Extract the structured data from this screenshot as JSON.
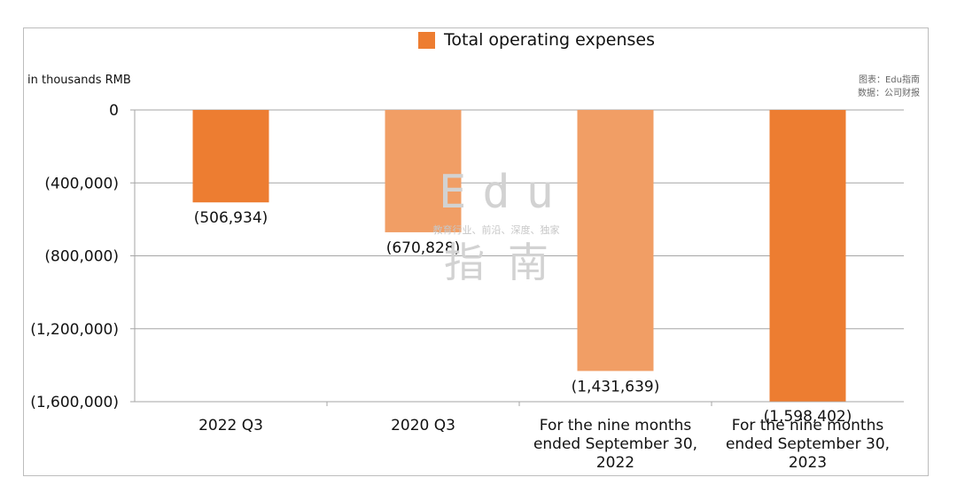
{
  "chart_data": {
    "type": "bar",
    "title": "",
    "legend": [
      {
        "label": "Total operating expenses",
        "color": "#ed7d31"
      }
    ],
    "legend_position": "top-center",
    "ylabel": "in thousands RMB",
    "xlabel": "",
    "ylim": [
      -1600000,
      0
    ],
    "y_ticks": [
      0,
      -400000,
      -800000,
      -1200000,
      -1600000
    ],
    "y_tick_labels": [
      "0",
      "(400,000)",
      "(800,000)",
      "(1,200,000)",
      "(1,600,000)"
    ],
    "grid": true,
    "categories": [
      [
        "2022 Q3"
      ],
      [
        "2020 Q3"
      ],
      [
        "For the nine months",
        "ended September 30,",
        "2022"
      ],
      [
        "For the nine months",
        "ended September 30,",
        "2023"
      ]
    ],
    "values": [
      -506934,
      -670828,
      -1431639,
      -1598402
    ],
    "data_labels": [
      "(506,934)",
      "(670,828)",
      "(1,431,639)",
      "(1,598,402)"
    ],
    "bar_colors": [
      "#ed7d31",
      "#f19e65",
      "#f19e65",
      "#ed7d31"
    ]
  },
  "source_note": {
    "line1": "图表：Edu指南",
    "line2": "数据：公司财报"
  },
  "watermark": {
    "latin": "Edu",
    "tagline": "教育行业、前沿、深度、独家",
    "cjk": "指南"
  }
}
